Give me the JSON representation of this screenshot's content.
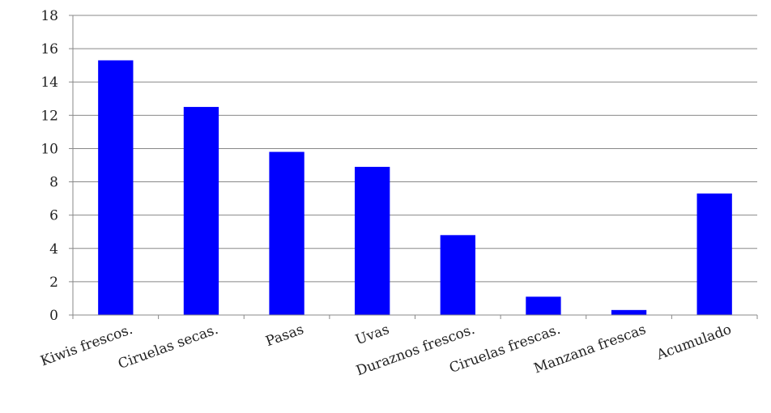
{
  "chart_data": {
    "type": "bar",
    "title": "",
    "xlabel": "",
    "ylabel": "",
    "categories": [
      "Kiwis frescos.",
      "Ciruelas secas.",
      "Pasas",
      "Uvas",
      "Duraznos frescos.",
      "Ciruelas frescas.",
      "Manzana frescas",
      "Acumulado"
    ],
    "values": [
      15.3,
      12.5,
      9.8,
      8.9,
      4.8,
      1.1,
      0.3,
      7.3
    ],
    "ylim": [
      0,
      18
    ],
    "yticks": [
      "0",
      "2",
      "4",
      "6",
      "8",
      "10",
      "12",
      "14",
      "16",
      "18"
    ],
    "grid": true,
    "legend": "none",
    "colors": {
      "bar": "#0000FF",
      "grid": "#888888",
      "axis": "#888888"
    }
  }
}
